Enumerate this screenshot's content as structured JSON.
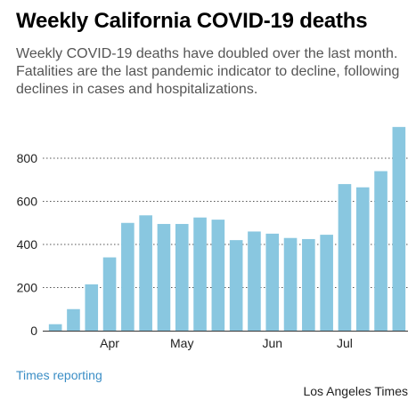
{
  "header": {
    "title": "Weekly California COVID-19 deaths",
    "subtitle": "Weekly COVID-19 deaths have doubled over the last month. Fatalities are the last pandemic indicator to decline, following declines in cases and hospitalizations."
  },
  "footer": {
    "source": "Times reporting",
    "credit": "Los Angeles Times"
  },
  "colors": {
    "bar": "#89c7e0",
    "grid": "#555555",
    "source_link": "#3b8ec6"
  },
  "chart_data": {
    "type": "bar",
    "title": "Weekly California COVID-19 deaths",
    "xlabel": "",
    "ylabel": "",
    "ylim": [
      0,
      960
    ],
    "yticks": [
      0,
      200,
      400,
      600,
      800
    ],
    "grid": true,
    "month_labels": [
      {
        "label": "Apr",
        "index": 3
      },
      {
        "label": "May",
        "index": 7
      },
      {
        "label": "Jun",
        "index": 12
      },
      {
        "label": "Jul",
        "index": 16
      }
    ],
    "values": [
      30,
      100,
      215,
      340,
      500,
      535,
      495,
      495,
      525,
      515,
      420,
      460,
      450,
      430,
      425,
      445,
      680,
      665,
      740,
      945
    ]
  }
}
